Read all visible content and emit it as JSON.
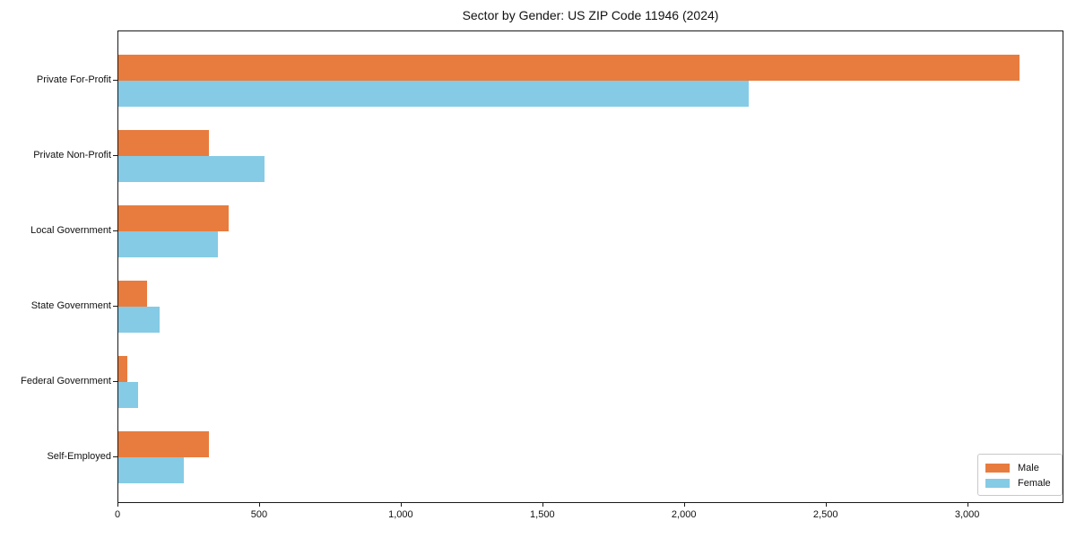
{
  "chart_data": {
    "type": "bar",
    "orientation": "horizontal",
    "title": "Sector by Gender: US ZIP Code 11946 (2024)",
    "categories": [
      "Private For-Profit",
      "Private Non-Profit",
      "Local Government",
      "State Government",
      "Federal Government",
      "Self-Employed"
    ],
    "series": [
      {
        "name": "Male",
        "color": "#E87C3E",
        "values": [
          3180,
          320,
          390,
          100,
          33,
          320
        ]
      },
      {
        "name": "Female",
        "color": "#85CBE5",
        "values": [
          2225,
          515,
          350,
          145,
          70,
          230
        ]
      }
    ],
    "xlabel": "",
    "ylabel": "",
    "xlim": [
      0,
      3340
    ],
    "x_ticks": [
      {
        "value": 0,
        "label": "0"
      },
      {
        "value": 500,
        "label": "500"
      },
      {
        "value": 1000,
        "label": "1,000"
      },
      {
        "value": 1500,
        "label": "1,500"
      },
      {
        "value": 2000,
        "label": "2,000"
      },
      {
        "value": 2500,
        "label": "2,500"
      },
      {
        "value": 3000,
        "label": "3,000"
      }
    ],
    "legend": {
      "position": "lower right",
      "entries": [
        "Male",
        "Female"
      ]
    },
    "grid": false,
    "axis_color": "#1a1a1a",
    "background": "#ffffff"
  }
}
